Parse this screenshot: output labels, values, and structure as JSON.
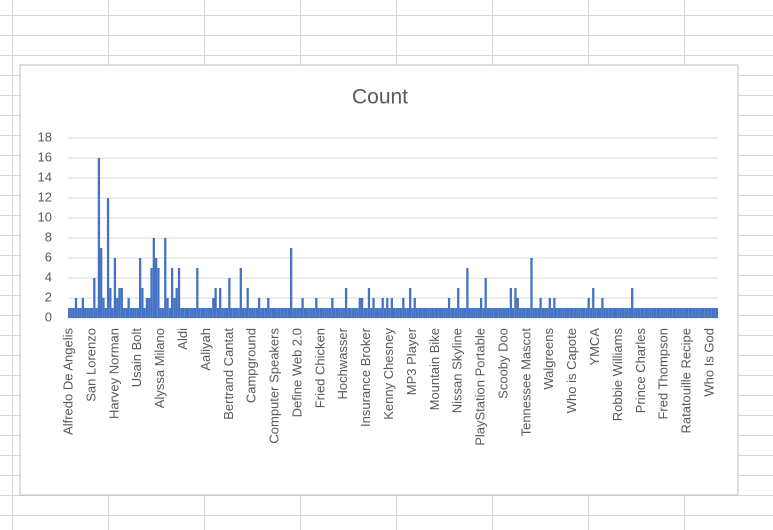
{
  "chart_data": {
    "type": "bar",
    "title": "Count",
    "color": "#4472c4",
    "ylim": [
      0,
      18
    ],
    "yticks": [
      0,
      2,
      4,
      6,
      8,
      10,
      12,
      14,
      16,
      18
    ],
    "grid": true,
    "categories": [
      "Alfredo De Angelis",
      null,
      null,
      null,
      null,
      null,
      null,
      null,
      null,
      null,
      "San Lorenzo",
      null,
      null,
      null,
      null,
      null,
      null,
      null,
      null,
      null,
      "Harvey Norman",
      null,
      null,
      null,
      null,
      null,
      null,
      null,
      null,
      null,
      "Usain Bolt",
      null,
      null,
      null,
      null,
      null,
      null,
      null,
      null,
      null,
      "Alyssa Milano",
      null,
      null,
      null,
      null,
      null,
      null,
      null,
      null,
      null,
      "Aldi",
      null,
      null,
      null,
      null,
      null,
      null,
      null,
      null,
      null,
      "Aaliyah",
      null,
      null,
      null,
      null,
      null,
      null,
      null,
      null,
      null,
      "Bertrand Cantat",
      null,
      null,
      null,
      null,
      null,
      null,
      null,
      null,
      null,
      "Campground",
      null,
      null,
      null,
      null,
      null,
      null,
      null,
      null,
      null,
      "Computer Speakers",
      null,
      null,
      null,
      null,
      null,
      null,
      null,
      null,
      null,
      "Define Web 2.0",
      null,
      null,
      null,
      null,
      null,
      null,
      null,
      null,
      null,
      "Fried Chicken",
      null,
      null,
      null,
      null,
      null,
      null,
      null,
      null,
      null,
      "Hochwasser",
      null,
      null,
      null,
      null,
      null,
      null,
      null,
      null,
      null,
      "Insurance Broker",
      null,
      null,
      null,
      null,
      null,
      null,
      null,
      null,
      null,
      "Kenny Chesney",
      null,
      null,
      null,
      null,
      null,
      null,
      null,
      null,
      null,
      "MP3 Player",
      null,
      null,
      null,
      null,
      null,
      null,
      null,
      null,
      null,
      "Mountain Bike",
      null,
      null,
      null,
      null,
      null,
      null,
      null,
      null,
      null,
      "Nissan Skyline",
      null,
      null,
      null,
      null,
      null,
      null,
      null,
      null,
      null,
      "PlayStation Portable",
      null,
      null,
      null,
      null,
      null,
      null,
      null,
      null,
      null,
      "Scooby Doo",
      null,
      null,
      null,
      null,
      null,
      null,
      null,
      null,
      null,
      "Tennessee Mascot",
      null,
      null,
      null,
      null,
      null,
      null,
      null,
      null,
      null,
      "Walgreens",
      null,
      null,
      null,
      null,
      null,
      null,
      null,
      null,
      null,
      "Who is Capote",
      null,
      null,
      null,
      null,
      null,
      null,
      null,
      null,
      null,
      "YMCA",
      null,
      null,
      null,
      null,
      null,
      null,
      null,
      null,
      null,
      "Robbie Williams",
      null,
      null,
      null,
      null,
      null,
      null,
      null,
      null,
      null,
      "Prince Charles",
      null,
      null,
      null,
      null,
      null,
      null,
      null,
      null,
      null,
      "Fred Thompson",
      null,
      null,
      null,
      null,
      null,
      null,
      null,
      null,
      null,
      "Ratatouille Recipe",
      null,
      null,
      null,
      null,
      null,
      null,
      null,
      null,
      null,
      "Who Is God",
      null,
      null,
      null
    ],
    "values": [
      1,
      1,
      1,
      2,
      1,
      1,
      2,
      1,
      1,
      1,
      1,
      4,
      1,
      16,
      7,
      2,
      1,
      12,
      3,
      1,
      6,
      2,
      3,
      3,
      1,
      1,
      2,
      1,
      1,
      1,
      1,
      6,
      3,
      1,
      2,
      2,
      5,
      8,
      6,
      5,
      1,
      1,
      8,
      2,
      1,
      5,
      2,
      3,
      5,
      1,
      1,
      1,
      1,
      1,
      1,
      1,
      5,
      1,
      1,
      1,
      1,
      1,
      1,
      2,
      3,
      1,
      3,
      1,
      1,
      1,
      4,
      1,
      1,
      1,
      1,
      5,
      1,
      1,
      3,
      1,
      1,
      1,
      1,
      2,
      1,
      1,
      1,
      2,
      1,
      1,
      1,
      1,
      1,
      1,
      1,
      1,
      1,
      7,
      1,
      1,
      1,
      1,
      2,
      1,
      1,
      1,
      1,
      1,
      2,
      1,
      1,
      1,
      1,
      1,
      1,
      2,
      1,
      1,
      1,
      1,
      1,
      3,
      1,
      1,
      1,
      1,
      1,
      2,
      2,
      1,
      1,
      3,
      1,
      2,
      1,
      1,
      1,
      2,
      1,
      2,
      1,
      2,
      1,
      1,
      1,
      1,
      2,
      1,
      1,
      3,
      1,
      2,
      1,
      1,
      1,
      1,
      1,
      1,
      1,
      1,
      1,
      1,
      1,
      1,
      1,
      1,
      2,
      1,
      1,
      1,
      3,
      1,
      1,
      1,
      5,
      1,
      1,
      1,
      1,
      1,
      2,
      1,
      4,
      1,
      1,
      1,
      1,
      1,
      1,
      1,
      1,
      1,
      1,
      3,
      1,
      3,
      2,
      1,
      1,
      1,
      1,
      1,
      6,
      1,
      1,
      1,
      2,
      1,
      1,
      1,
      2,
      1,
      2,
      1,
      1,
      1,
      1,
      1,
      1,
      1,
      1,
      1,
      1,
      1,
      1,
      1,
      1,
      2,
      1,
      3,
      1,
      1,
      1,
      2,
      1,
      1,
      1,
      1,
      1,
      1,
      1,
      1,
      1,
      1,
      1,
      1,
      3,
      1,
      1,
      1,
      1,
      1,
      1,
      1,
      1,
      1,
      1,
      1,
      1,
      1,
      1,
      1,
      1,
      1,
      1,
      1,
      1,
      1,
      1,
      1,
      1,
      1,
      1,
      1,
      1,
      1,
      1,
      1,
      1,
      1,
      1,
      1,
      1,
      1
    ]
  }
}
